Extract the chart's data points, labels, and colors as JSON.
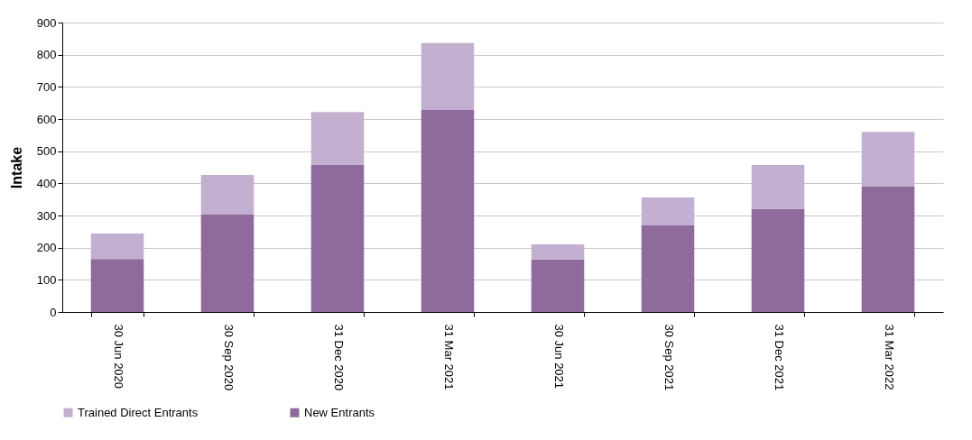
{
  "chart_data": {
    "type": "bar",
    "ylabel": "Intake",
    "stacked": true,
    "categories": [
      "30 Jun 2020",
      "30 Sep 2020",
      "31 Dec 2020",
      "31 Mar 2021",
      "30 Jun 2021",
      "30 Sep 2021",
      "31 Dec 2021",
      "31 Mar 2022"
    ],
    "series": [
      {
        "name": "New Entrants",
        "color": "#8e6a9d",
        "values": [
          165,
          303,
          457,
          628,
          163,
          269,
          320,
          390
        ]
      },
      {
        "name": "Trained Direct Entrants",
        "color": "#c3b0d0",
        "values": [
          79,
          123,
          165,
          208,
          47,
          87,
          137,
          170
        ]
      }
    ],
    "ylim": [
      0,
      900
    ],
    "yticks": [
      0,
      100,
      200,
      300,
      400,
      500,
      600,
      700,
      800,
      900
    ],
    "grid": "y",
    "legend": "bottom"
  }
}
